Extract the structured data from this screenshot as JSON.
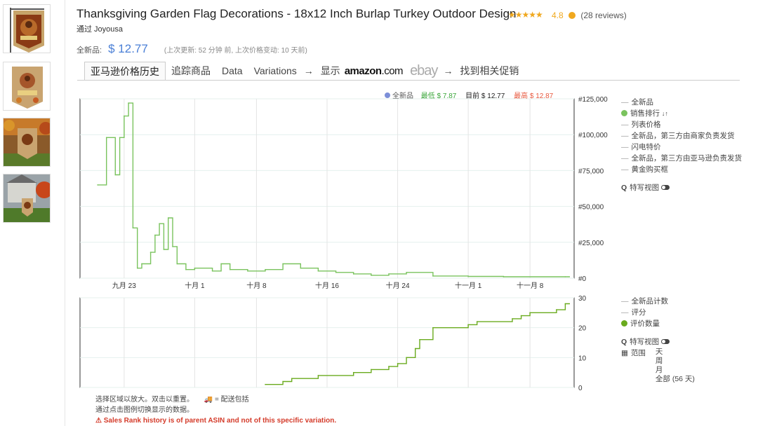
{
  "product": {
    "title": "Thanksgiving Garden Flag Decorations - 18x12 Inch Burlap Turkey Outdoor Design",
    "stars": "★★★★★",
    "rating": "4.8",
    "reviews": "(28 reviews)",
    "seller": "通过 Joyousa",
    "price_label": "全新品:",
    "price": "$ 12.77",
    "updated": "(上次更新: 52 分钟 前, 上次价格变动: 10 天前)"
  },
  "tabs": {
    "history": "亚马逊价格历史",
    "track": "追踪商品",
    "data": "Data",
    "variations": "Variations",
    "arrow1": "→",
    "show": "显示",
    "amazon_main": "amazon",
    "amazon_com": ".com",
    "ebay": "ebay",
    "arrow2": "→",
    "promo": "找到相关促销"
  },
  "top_legend": {
    "new": "全新品",
    "low_label": "最低 $ 7.87",
    "current_label": "目前 $ 12.77",
    "high_label": "最高 $ 12.87"
  },
  "side_top": {
    "new": "全新品",
    "sales_rank": "销售排行",
    "sort_icon": "↓↑",
    "list_price": "列表价格",
    "new_third_party": "全新品，第三方由商家负责发货",
    "lightning": "闪电特价",
    "new_fba": "全新品，第三方由亚马逊负责发货",
    "buybox": "黄金购买框",
    "closeup": "特写视图"
  },
  "side_bottom": {
    "new_count": "全新品计数",
    "rating": "评分",
    "review_count": "评价数量",
    "closeup": "特写视图",
    "range": "范围",
    "day": "天",
    "week": "周",
    "month": "月",
    "all": "全部 (56 天)"
  },
  "notes": {
    "line1": "选择区域以放大。双击以重置。",
    "shipping": "= 配送包括",
    "line2": "通过点击图例切换显示的数据。",
    "warning": "Sales Rank history is of parent ASIN and not of this specific variation."
  },
  "colors": {
    "rank": "#7ac35e",
    "reviews": "#6aab1e",
    "new": "#7c8fd8",
    "low": "#3aa63a",
    "high": "#e8593f",
    "price": "#4a7fd6",
    "stars": "#f0a81e"
  },
  "chart_data": [
    {
      "type": "line",
      "name": "sales-rank",
      "x_ticks": [
        "九月 23",
        "十月 1",
        "十月 8",
        "十月 16",
        "十月 24",
        "十一月 1",
        "十一月 8"
      ],
      "y_ticks": [
        "#125,000",
        "#100,000",
        "#75,000",
        "#50,000",
        "#25,000",
        "#0"
      ],
      "ylim": [
        0,
        125000
      ],
      "series": [
        {
          "name": "销售排行",
          "step": true,
          "points": [
            [
              "2023-09-20",
              65000
            ],
            [
              "2023-09-21",
              98000
            ],
            [
              "2023-09-22",
              72000
            ],
            [
              "2023-09-22 12:00",
              98000
            ],
            [
              "2023-09-23",
              113000
            ],
            [
              "2023-09-23 12:00",
              122000
            ],
            [
              "2023-09-24",
              35000
            ],
            [
              "2023-09-24 12:00",
              7000
            ],
            [
              "2023-09-25",
              10000
            ],
            [
              "2023-09-26",
              18000
            ],
            [
              "2023-09-26 12:00",
              30000
            ],
            [
              "2023-09-27",
              38000
            ],
            [
              "2023-09-27 12:00",
              20000
            ],
            [
              "2023-09-28",
              42000
            ],
            [
              "2023-09-28 12:00",
              22000
            ],
            [
              "2023-09-29",
              10000
            ],
            [
              "2023-09-30",
              6000
            ],
            [
              "2023-10-01",
              7000
            ],
            [
              "2023-10-03",
              5000
            ],
            [
              "2023-10-04",
              10000
            ],
            [
              "2023-10-05",
              6000
            ],
            [
              "2023-10-07",
              5000
            ],
            [
              "2023-10-09",
              6000
            ],
            [
              "2023-10-11",
              10000
            ],
            [
              "2023-10-13",
              7000
            ],
            [
              "2023-10-15",
              5000
            ],
            [
              "2023-10-17",
              4000
            ],
            [
              "2023-10-19",
              3000
            ],
            [
              "2023-10-21",
              2000
            ],
            [
              "2023-10-23",
              3000
            ],
            [
              "2023-10-25",
              4000
            ],
            [
              "2023-10-28",
              1500
            ],
            [
              "2023-11-01",
              1200
            ],
            [
              "2023-11-05",
              1000
            ],
            [
              "2023-11-12",
              1000
            ]
          ]
        }
      ]
    },
    {
      "type": "line",
      "name": "review-count",
      "y_ticks": [
        "30",
        "20",
        "10",
        "0"
      ],
      "ylim": [
        0,
        30
      ],
      "series": [
        {
          "name": "评价数量",
          "step": true,
          "points": [
            [
              "2023-10-09",
              1
            ],
            [
              "2023-10-11",
              2
            ],
            [
              "2023-10-12",
              3
            ],
            [
              "2023-10-15",
              4
            ],
            [
              "2023-10-19",
              5
            ],
            [
              "2023-10-21",
              6
            ],
            [
              "2023-10-23",
              7
            ],
            [
              "2023-10-24",
              8
            ],
            [
              "2023-10-25",
              10
            ],
            [
              "2023-10-26",
              13
            ],
            [
              "2023-10-26 12:00",
              16
            ],
            [
              "2023-10-28",
              20
            ],
            [
              "2023-11-01",
              21
            ],
            [
              "2023-11-02",
              22
            ],
            [
              "2023-11-06",
              23
            ],
            [
              "2023-11-07",
              24
            ],
            [
              "2023-11-08",
              25
            ],
            [
              "2023-11-11",
              26
            ],
            [
              "2023-11-12",
              28
            ]
          ]
        }
      ]
    }
  ]
}
